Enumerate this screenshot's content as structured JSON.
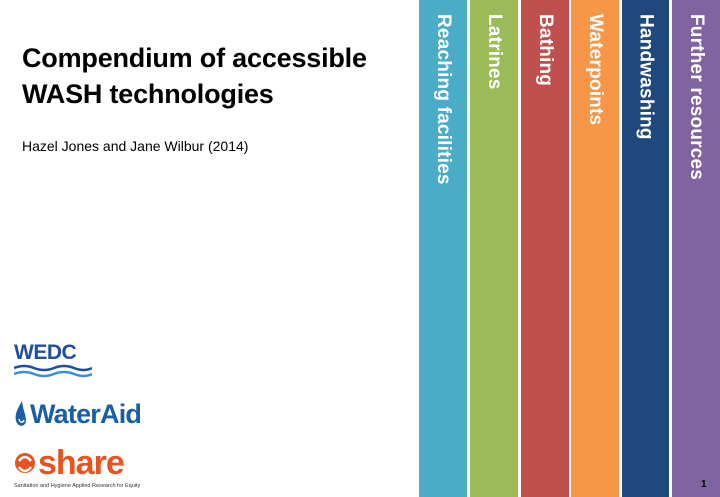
{
  "title": "Compendium of accessible\nWASH technologies",
  "authors": "Hazel Jones and Jane Wilbur (2014)",
  "tabs": [
    {
      "label": "Reaching facilities",
      "color": "#4aacc6"
    },
    {
      "label": "Latrines",
      "color": "#9bbb59"
    },
    {
      "label": "Bathing",
      "color": "#c0504d"
    },
    {
      "label": "Waterpoints",
      "color": "#f79646"
    },
    {
      "label": "Handwashing",
      "color": "#1f497d"
    },
    {
      "label": "Further resources",
      "color": "#8064a2"
    }
  ],
  "logos": {
    "wedc": "WEDC",
    "wateraid": "WaterAid",
    "share": "share",
    "share_tagline": "Sanitation and Hygiene Applied Research for Equity"
  },
  "page_number": "1"
}
